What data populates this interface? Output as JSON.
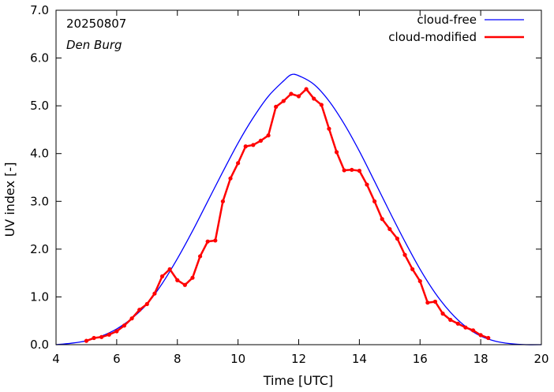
{
  "chart_data": {
    "type": "line",
    "annotations": {
      "date": "20250807",
      "station": "Den Burg"
    },
    "xlabel": "Time  [UTC]",
    "ylabel": "UV index  [-]",
    "xlim": [
      4,
      20
    ],
    "ylim": [
      0,
      7
    ],
    "x_ticks": [
      "4",
      "6",
      "8",
      "10",
      "12",
      "14",
      "16",
      "18",
      "20"
    ],
    "y_ticks": [
      "0.0",
      "1.0",
      "2.0",
      "3.0",
      "4.0",
      "5.0",
      "6.0",
      "7.0"
    ],
    "grid": false,
    "legend_position": "top-right",
    "series": [
      {
        "name": "cloud-free",
        "color": "#0000ff",
        "markers": false,
        "x": [
          4.0,
          4.5,
          5.0,
          5.5,
          6.0,
          6.5,
          7.0,
          7.5,
          8.0,
          8.5,
          9.0,
          9.5,
          10.0,
          10.5,
          11.0,
          11.5,
          11.75,
          12.0,
          12.5,
          13.0,
          13.5,
          14.0,
          14.5,
          15.0,
          15.5,
          16.0,
          16.5,
          17.0,
          17.5,
          18.0,
          18.5,
          19.0,
          19.5,
          20.0
        ],
        "y": [
          0.0,
          0.03,
          0.08,
          0.18,
          0.33,
          0.55,
          0.85,
          1.28,
          1.8,
          2.38,
          3.0,
          3.62,
          4.22,
          4.75,
          5.2,
          5.52,
          5.65,
          5.63,
          5.45,
          5.1,
          4.62,
          4.05,
          3.42,
          2.78,
          2.16,
          1.58,
          1.08,
          0.68,
          0.38,
          0.18,
          0.07,
          0.02,
          0.0,
          0.0
        ]
      },
      {
        "name": "cloud-modified",
        "color": "#ff0000",
        "markers": true,
        "x": [
          5.0,
          5.25,
          5.5,
          5.75,
          6.0,
          6.25,
          6.5,
          6.75,
          7.0,
          7.25,
          7.5,
          7.75,
          8.0,
          8.25,
          8.5,
          8.75,
          9.0,
          9.25,
          9.5,
          9.75,
          10.0,
          10.25,
          10.5,
          10.75,
          11.0,
          11.25,
          11.5,
          11.75,
          12.0,
          12.25,
          12.5,
          12.75,
          13.0,
          13.25,
          13.5,
          13.75,
          14.0,
          14.25,
          14.5,
          14.75,
          15.0,
          15.25,
          15.5,
          15.75,
          16.0,
          16.25,
          16.5,
          16.75,
          17.0,
          17.25,
          17.5,
          17.75,
          18.0,
          18.25
        ],
        "y": [
          0.08,
          0.14,
          0.16,
          0.21,
          0.28,
          0.4,
          0.55,
          0.73,
          0.85,
          1.07,
          1.43,
          1.58,
          1.35,
          1.25,
          1.4,
          1.85,
          2.16,
          2.18,
          3.0,
          3.48,
          3.8,
          4.15,
          4.18,
          4.27,
          4.38,
          4.98,
          5.1,
          5.25,
          5.2,
          5.35,
          5.15,
          5.02,
          4.52,
          4.03,
          3.65,
          3.66,
          3.64,
          3.35,
          3.0,
          2.63,
          2.42,
          2.22,
          1.88,
          1.58,
          1.33,
          0.88,
          0.9,
          0.65,
          0.52,
          0.44,
          0.36,
          0.3,
          0.2,
          0.14
        ]
      }
    ]
  }
}
